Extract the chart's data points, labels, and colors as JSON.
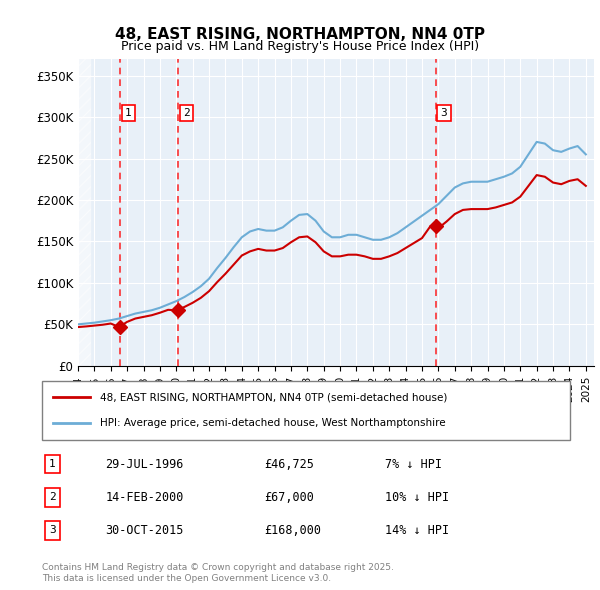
{
  "title": "48, EAST RISING, NORTHAMPTON, NN4 0TP",
  "subtitle": "Price paid vs. HM Land Registry's House Price Index (HPI)",
  "ylabel_ticks": [
    "£0",
    "£50K",
    "£100K",
    "£150K",
    "£200K",
    "£250K",
    "£300K",
    "£350K"
  ],
  "ytick_vals": [
    0,
    50000,
    100000,
    150000,
    200000,
    250000,
    300000,
    350000
  ],
  "ylim": [
    0,
    370000
  ],
  "xlim_start": 1994.0,
  "xlim_end": 2025.5,
  "hpi_color": "#6dadd6",
  "price_color": "#cc0000",
  "purchase_marker_color": "#cc0000",
  "background_color": "#e8f0f8",
  "hatched_region_end": 1994.5,
  "purchases": [
    {
      "year": 1996.57,
      "price": 46725,
      "label": "1"
    },
    {
      "year": 2000.12,
      "price": 67000,
      "label": "2"
    },
    {
      "year": 2015.83,
      "price": 168000,
      "label": "3"
    }
  ],
  "purchase_table": [
    {
      "num": "1",
      "date": "29-JUL-1996",
      "price": "£46,725",
      "note": "7% ↓ HPI"
    },
    {
      "num": "2",
      "date": "14-FEB-2000",
      "price": "£67,000",
      "note": "10% ↓ HPI"
    },
    {
      "num": "3",
      "date": "30-OCT-2015",
      "price": "£168,000",
      "note": "14% ↓ HPI"
    }
  ],
  "legend_line1": "48, EAST RISING, NORTHAMPTON, NN4 0TP (semi-detached house)",
  "legend_line2": "HPI: Average price, semi-detached house, West Northamptonshire",
  "footer": "Contains HM Land Registry data © Crown copyright and database right 2025.\nThis data is licensed under the Open Government Licence v3.0.",
  "hpi_x": [
    1994,
    1994.5,
    1995,
    1995.5,
    1996,
    1996.5,
    1997,
    1997.5,
    1998,
    1998.5,
    1999,
    1999.5,
    2000,
    2000.5,
    2001,
    2001.5,
    2002,
    2002.5,
    2003,
    2003.5,
    2004,
    2004.5,
    2005,
    2005.5,
    2006,
    2006.5,
    2007,
    2007.5,
    2008,
    2008.5,
    2009,
    2009.5,
    2010,
    2010.5,
    2011,
    2011.5,
    2012,
    2012.5,
    2013,
    2013.5,
    2014,
    2014.5,
    2015,
    2015.5,
    2016,
    2016.5,
    2017,
    2017.5,
    2018,
    2018.5,
    2019,
    2019.5,
    2020,
    2020.5,
    2021,
    2021.5,
    2022,
    2022.5,
    2023,
    2023.5,
    2024,
    2024.5,
    2025
  ],
  "hpi_y": [
    50000,
    51000,
    52000,
    53500,
    55000,
    57000,
    60000,
    63000,
    65000,
    67000,
    70000,
    74000,
    78000,
    83000,
    89000,
    96000,
    105000,
    118000,
    130000,
    143000,
    155000,
    162000,
    165000,
    163000,
    163000,
    167000,
    175000,
    182000,
    183000,
    175000,
    162000,
    155000,
    155000,
    158000,
    158000,
    155000,
    152000,
    152000,
    155000,
    160000,
    167000,
    174000,
    181000,
    188000,
    195000,
    205000,
    215000,
    220000,
    222000,
    222000,
    222000,
    225000,
    228000,
    232000,
    240000,
    255000,
    270000,
    268000,
    260000,
    258000,
    262000,
    265000,
    255000
  ],
  "price_x": [
    1994,
    1994.5,
    1995,
    1995.5,
    1996,
    1996.5,
    1997,
    1997.5,
    1998,
    1998.5,
    1999,
    1999.5,
    2000,
    2000.5,
    2001,
    2001.5,
    2002,
    2002.5,
    2003,
    2003.5,
    2004,
    2004.5,
    2005,
    2005.5,
    2006,
    2006.5,
    2007,
    2007.5,
    2008,
    2008.5,
    2009,
    2009.5,
    2010,
    2010.5,
    2011,
    2011.5,
    2012,
    2012.5,
    2013,
    2013.5,
    2014,
    2014.5,
    2015,
    2015.5,
    2016,
    2016.5,
    2017,
    2017.5,
    2018,
    2018.5,
    2019,
    2019.5,
    2020,
    2020.5,
    2021,
    2021.5,
    2022,
    2022.5,
    2023,
    2023.5,
    2024,
    2024.5,
    2025
  ],
  "price_y": [
    46725,
    47500,
    48500,
    49500,
    51000,
    46725,
    53000,
    57000,
    59000,
    61000,
    64000,
    67500,
    67000,
    71000,
    76000,
    82000,
    90000,
    101000,
    111000,
    122000,
    133000,
    138000,
    141000,
    139000,
    139000,
    142000,
    149000,
    155000,
    156000,
    149000,
    138000,
    132000,
    132000,
    134000,
    134000,
    132000,
    129000,
    129000,
    132000,
    136000,
    142000,
    148000,
    154000,
    168000,
    166000,
    174000,
    183000,
    188000,
    189000,
    189000,
    189000,
    191000,
    194000,
    197000,
    204000,
    217000,
    230000,
    228000,
    221000,
    219000,
    223000,
    225000,
    217000
  ]
}
